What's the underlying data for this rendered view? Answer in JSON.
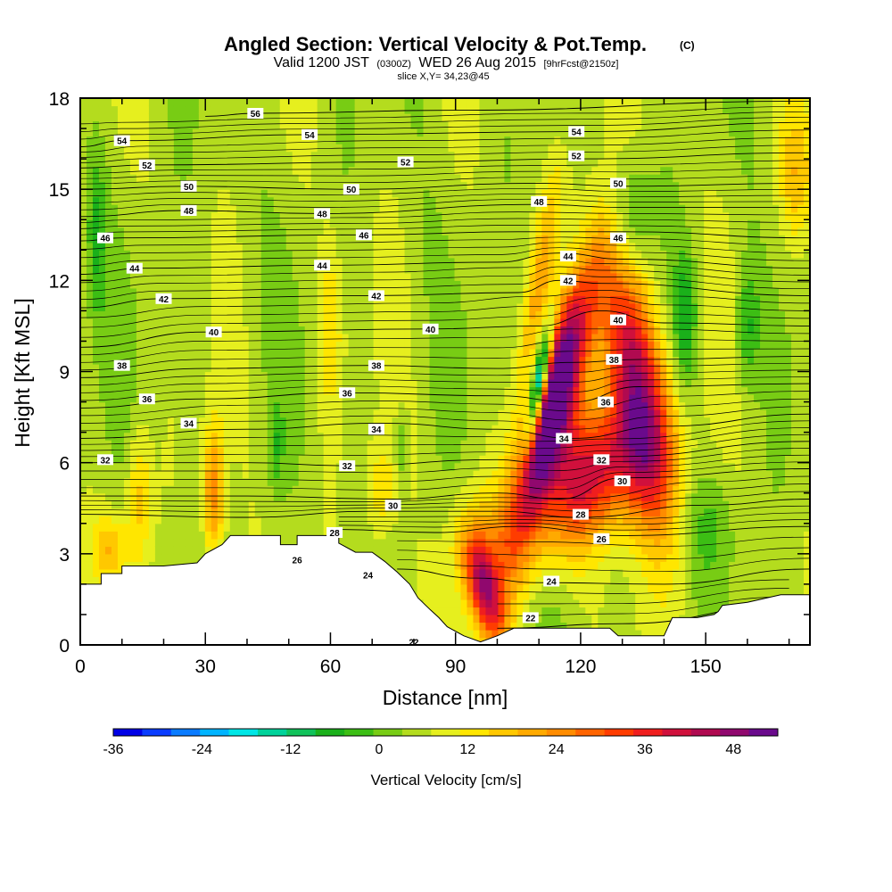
{
  "chart_data": {
    "type": "heatmap",
    "title": "Angled Section: Vertical Velocity & Pot.Temp.",
    "title_units": "(C)",
    "subtitle": {
      "prefix": "Valid 1200 JST",
      "zulu": "(0300Z)",
      "date": "WED 26 Aug 2015",
      "forecast": "[9hrFcst@2150z]"
    },
    "slice_label": "slice X,Y= 34,23@45",
    "xlabel": "Distance [nm]",
    "ylabel": "Height [Kft MSL]",
    "xlim": [
      0,
      175
    ],
    "ylim": [
      0,
      18
    ],
    "x_ticks": [
      0,
      30,
      60,
      90,
      120,
      150
    ],
    "y_ticks": [
      0,
      3,
      6,
      9,
      12,
      15,
      18
    ],
    "colorbar": {
      "title": "Vertical Velocity [cm/s]",
      "min": -36,
      "max": 54,
      "step": 4,
      "tick_values": [
        -36,
        -24,
        -12,
        0,
        12,
        24,
        36,
        48
      ],
      "colors": [
        "#0000e6",
        "#0a3cff",
        "#0a7bff",
        "#00b4ff",
        "#00e6e6",
        "#00d29a",
        "#10c25a",
        "#1ab01a",
        "#3cbe14",
        "#78cc14",
        "#b4dc1e",
        "#e6ef1e",
        "#ffe600",
        "#ffc800",
        "#ffaa00",
        "#ff8c00",
        "#ff6400",
        "#ff3c00",
        "#f01e1e",
        "#d0103c",
        "#b00a50",
        "#90086e",
        "#6a0a8c"
      ]
    },
    "terrain": [
      [
        0,
        2
      ],
      [
        5,
        2
      ],
      [
        5,
        2.35
      ],
      [
        10,
        2.35
      ],
      [
        10,
        2.6
      ],
      [
        20,
        2.6
      ],
      [
        28,
        2.7
      ],
      [
        30,
        3.0
      ],
      [
        34,
        3.3
      ],
      [
        36,
        3.6
      ],
      [
        48,
        3.6
      ],
      [
        48,
        3.3
      ],
      [
        52,
        3.3
      ],
      [
        52,
        3.6
      ],
      [
        62,
        3.6
      ],
      [
        62,
        3.35
      ],
      [
        66,
        3.05
      ],
      [
        70,
        3.05
      ],
      [
        73,
        2.75
      ],
      [
        76,
        2.4
      ],
      [
        79,
        2.0
      ],
      [
        81,
        1.55
      ],
      [
        84,
        1.15
      ],
      [
        86,
        0.9
      ],
      [
        88,
        0.6
      ],
      [
        92,
        0.3
      ],
      [
        96,
        0.1
      ],
      [
        100,
        0.3
      ],
      [
        104,
        0.55
      ],
      [
        110,
        0.55
      ],
      [
        115,
        0.55
      ],
      [
        120,
        0.55
      ],
      [
        127,
        0.55
      ],
      [
        129,
        0.3
      ],
      [
        140,
        0.3
      ],
      [
        142,
        0.9
      ],
      [
        148,
        0.9
      ],
      [
        152,
        1.0
      ],
      [
        153,
        1.1
      ],
      [
        154,
        1.3
      ],
      [
        160,
        1.4
      ],
      [
        168,
        1.65
      ],
      [
        175,
        1.65
      ]
    ],
    "theta_contours": [
      {
        "label": "22",
        "points": [
          [
            100,
            0.55
          ],
          [
            130,
            0.7
          ],
          [
            170,
            1.3
          ]
        ]
      },
      {
        "label": "24",
        "points": [
          [
            76,
            2.5
          ],
          [
            95,
            2.2
          ],
          [
            110,
            2.05
          ],
          [
            140,
            2.0
          ],
          [
            175,
            2.5
          ]
        ]
      },
      {
        "label": "26",
        "points": [
          [
            62,
            3.8
          ],
          [
            85,
            3.7
          ],
          [
            105,
            3.9
          ],
          [
            130,
            3.6
          ],
          [
            175,
            3.9
          ]
        ]
      },
      {
        "label": "28",
        "points": [
          [
            0,
            4.3
          ],
          [
            40,
            4.2
          ],
          [
            70,
            4.4
          ],
          [
            100,
            4.4
          ],
          [
            120,
            4.2
          ],
          [
            150,
            4.6
          ],
          [
            175,
            4.8
          ]
        ]
      },
      {
        "label": "30",
        "points": [
          [
            0,
            4.9
          ],
          [
            40,
            4.9
          ],
          [
            75,
            4.8
          ],
          [
            100,
            5.0
          ],
          [
            115,
            4.8
          ],
          [
            130,
            5.5
          ],
          [
            175,
            5.8
          ]
        ]
      },
      {
        "label": "32",
        "points": [
          [
            0,
            6.0
          ],
          [
            40,
            6.0
          ],
          [
            64,
            5.9
          ],
          [
            100,
            6.1
          ],
          [
            110,
            6.0
          ],
          [
            128,
            6.2
          ],
          [
            175,
            6.7
          ]
        ]
      },
      {
        "label": "34",
        "points": [
          [
            0,
            6.8
          ],
          [
            40,
            7.1
          ],
          [
            72,
            7.3
          ],
          [
            100,
            7.1
          ],
          [
            118,
            6.8
          ],
          [
            140,
            7.2
          ],
          [
            175,
            7.6
          ]
        ]
      },
      {
        "label": "36",
        "points": [
          [
            0,
            7.8
          ],
          [
            30,
            8.1
          ],
          [
            64,
            8.3
          ],
          [
            100,
            8.2
          ],
          [
            118,
            8.0
          ],
          [
            134,
            8.5
          ],
          [
            175,
            8.6
          ]
        ]
      },
      {
        "label": "38",
        "points": [
          [
            0,
            8.8
          ],
          [
            30,
            9.1
          ],
          [
            70,
            9.2
          ],
          [
            100,
            9.1
          ],
          [
            118,
            9.3
          ],
          [
            135,
            9.4
          ],
          [
            175,
            9.5
          ]
        ]
      },
      {
        "label": "40",
        "points": [
          [
            0,
            9.8
          ],
          [
            30,
            10.3
          ],
          [
            84,
            10.4
          ],
          [
            110,
            10.5
          ],
          [
            125,
            11.0
          ],
          [
            140,
            10.6
          ],
          [
            175,
            10.5
          ]
        ]
      },
      {
        "label": "42",
        "points": [
          [
            0,
            11.1
          ],
          [
            20,
            11.4
          ],
          [
            70,
            11.5
          ],
          [
            105,
            11.6
          ],
          [
            115,
            12.0
          ],
          [
            125,
            11.9
          ],
          [
            175,
            11.5
          ]
        ]
      },
      {
        "label": "44",
        "points": [
          [
            0,
            12.2
          ],
          [
            15,
            12.4
          ],
          [
            60,
            12.5
          ],
          [
            100,
            12.6
          ],
          [
            115,
            12.9
          ],
          [
            130,
            12.7
          ],
          [
            175,
            12.4
          ]
        ]
      },
      {
        "label": "46",
        "points": [
          [
            0,
            13.3
          ],
          [
            10,
            13.4
          ],
          [
            68,
            13.5
          ],
          [
            105,
            13.6
          ],
          [
            130,
            13.6
          ],
          [
            175,
            13.4
          ]
        ]
      },
      {
        "label": "48",
        "points": [
          [
            0,
            14.1
          ],
          [
            25,
            14.3
          ],
          [
            58,
            14.2
          ],
          [
            110,
            14.5
          ],
          [
            130,
            14.4
          ],
          [
            175,
            14.4
          ]
        ]
      },
      {
        "label": "50",
        "points": [
          [
            0,
            15.0
          ],
          [
            25,
            15.1
          ],
          [
            65,
            15.0
          ],
          [
            110,
            15.2
          ],
          [
            130,
            15.1
          ],
          [
            175,
            15.2
          ]
        ]
      },
      {
        "label": "52",
        "points": [
          [
            0,
            15.7
          ],
          [
            16,
            15.8
          ],
          [
            78,
            15.9
          ],
          [
            120,
            16.0
          ],
          [
            175,
            16.2
          ]
        ]
      },
      {
        "label": "54",
        "points": [
          [
            0,
            16.4
          ],
          [
            10,
            16.6
          ],
          [
            55,
            16.8
          ],
          [
            120,
            16.9
          ],
          [
            175,
            17.2
          ]
        ]
      },
      {
        "label": "56",
        "points": [
          [
            30,
            17.4
          ],
          [
            42,
            17.5
          ],
          [
            90,
            17.6
          ],
          [
            175,
            17.9
          ]
        ]
      }
    ],
    "contour_label_positions": [
      [
        108,
        0.9,
        "22"
      ],
      [
        113,
        2.1,
        "24"
      ],
      [
        125,
        3.5,
        "26"
      ],
      [
        120,
        4.3,
        "28"
      ],
      [
        130,
        5.4,
        "30"
      ],
      [
        125,
        6.1,
        "32"
      ],
      [
        116,
        6.8,
        "34"
      ],
      [
        126,
        8.0,
        "36"
      ],
      [
        128,
        9.4,
        "38"
      ],
      [
        129,
        10.7,
        "40"
      ],
      [
        117,
        12.0,
        "42"
      ],
      [
        117,
        12.8,
        "44"
      ],
      [
        129,
        13.4,
        "46"
      ],
      [
        110,
        14.6,
        "48"
      ],
      [
        129,
        15.2,
        "50"
      ],
      [
        119,
        16.1,
        "52"
      ],
      [
        119,
        16.9,
        "54"
      ],
      [
        80,
        0.1,
        "22"
      ],
      [
        69,
        2.3,
        "24"
      ],
      [
        52,
        2.8,
        "26"
      ],
      [
        61,
        3.7,
        "28"
      ],
      [
        75,
        4.6,
        "30"
      ],
      [
        64,
        5.9,
        "32"
      ],
      [
        71,
        7.1,
        "34"
      ],
      [
        64,
        8.3,
        "36"
      ],
      [
        71,
        9.2,
        "38"
      ],
      [
        84,
        10.4,
        "40"
      ],
      [
        71,
        11.5,
        "42"
      ],
      [
        58,
        12.5,
        "44"
      ],
      [
        68,
        13.5,
        "46"
      ],
      [
        58,
        14.2,
        "48"
      ],
      [
        65,
        15.0,
        "50"
      ],
      [
        78,
        15.9,
        "52"
      ],
      [
        55,
        16.8,
        "54"
      ],
      [
        42,
        17.5,
        "56"
      ],
      [
        6,
        6.1,
        "32"
      ],
      [
        26,
        7.3,
        "34"
      ],
      [
        16,
        8.1,
        "36"
      ],
      [
        10,
        9.2,
        "38"
      ],
      [
        32,
        10.3,
        "40"
      ],
      [
        20,
        11.4,
        "42"
      ],
      [
        13,
        12.4,
        "44"
      ],
      [
        6,
        13.4,
        "46"
      ],
      [
        26,
        14.3,
        "48"
      ],
      [
        26,
        15.1,
        "50"
      ],
      [
        16,
        15.8,
        "52"
      ],
      [
        10,
        16.6,
        "54"
      ]
    ],
    "velocity_blobs": [
      {
        "x": 114,
        "y": 8.0,
        "sx": 3.5,
        "sy": 3.2,
        "amp": 44,
        "rot": 0.32
      },
      {
        "x": 115,
        "y": 9.6,
        "sx": 2.2,
        "sy": 1.6,
        "amp": 10,
        "rot": 0.3
      },
      {
        "x": 133,
        "y": 8.8,
        "sx": 4.8,
        "sy": 3.3,
        "amp": 42,
        "rot": -0.2
      },
      {
        "x": 110,
        "y": 8.6,
        "sx": 1.2,
        "sy": 1.3,
        "amp": -42,
        "rot": 0.2
      },
      {
        "x": 120,
        "y": 5.0,
        "sx": 6.0,
        "sy": 1.6,
        "amp": 22,
        "rot": 0.4
      },
      {
        "x": 128,
        "y": 6.2,
        "sx": 9.0,
        "sy": 1.5,
        "amp": 20,
        "rot": 0.2
      },
      {
        "x": 106,
        "y": 4.0,
        "sx": 6.0,
        "sy": 2.5,
        "amp": 12,
        "rot": 0.3
      },
      {
        "x": 97,
        "y": 1.8,
        "sx": 2.6,
        "sy": 1.3,
        "amp": 30,
        "rot": -0.3
      },
      {
        "x": 95,
        "y": 3.2,
        "sx": 4.5,
        "sy": 1.2,
        "amp": 10,
        "rot": 0
      },
      {
        "x": 32,
        "y": 5.0,
        "sx": 1.8,
        "sy": 1.6,
        "amp": 22,
        "rot": 0
      },
      {
        "x": 14,
        "y": 4.8,
        "sx": 2.0,
        "sy": 1.6,
        "amp": 12,
        "rot": 0
      },
      {
        "x": 7,
        "y": 3.2,
        "sx": 3.0,
        "sy": 0.8,
        "amp": 12,
        "rot": 0
      },
      {
        "x": 60,
        "y": 10.5,
        "sx": 2.0,
        "sy": 2.0,
        "amp": 10,
        "rot": 0
      },
      {
        "x": 110,
        "y": 12.0,
        "sx": 2.0,
        "sy": 2.5,
        "amp": 14,
        "rot": 0.2
      },
      {
        "x": 72,
        "y": 5.0,
        "sx": 2.5,
        "sy": 1.3,
        "amp": 10,
        "rot": 0
      },
      {
        "x": 172,
        "y": 15.5,
        "sx": 3.0,
        "sy": 1.5,
        "amp": 12,
        "rot": 0
      },
      {
        "x": 131,
        "y": 14.0,
        "sx": 4.0,
        "sy": 1.5,
        "amp": -12,
        "rot": 0
      },
      {
        "x": 145,
        "y": 10.8,
        "sx": 2.0,
        "sy": 1.5,
        "amp": -14,
        "rot": 0
      },
      {
        "x": 160,
        "y": 10.5,
        "sx": 2.0,
        "sy": 1.4,
        "amp": -11,
        "rot": 0
      },
      {
        "x": 4,
        "y": 13.5,
        "sx": 1.5,
        "sy": 1.8,
        "amp": -10,
        "rot": 0
      },
      {
        "x": 77,
        "y": 6.5,
        "sx": 1.0,
        "sy": 0.8,
        "amp": -9,
        "rot": 0
      },
      {
        "x": 47,
        "y": 6.5,
        "sx": 1.2,
        "sy": 1.0,
        "amp": -8,
        "rot": 0
      },
      {
        "x": 150,
        "y": 4.0,
        "sx": 5.0,
        "sy": 1.2,
        "amp": -6,
        "rot": 0
      }
    ],
    "background_velocity": 6
  }
}
